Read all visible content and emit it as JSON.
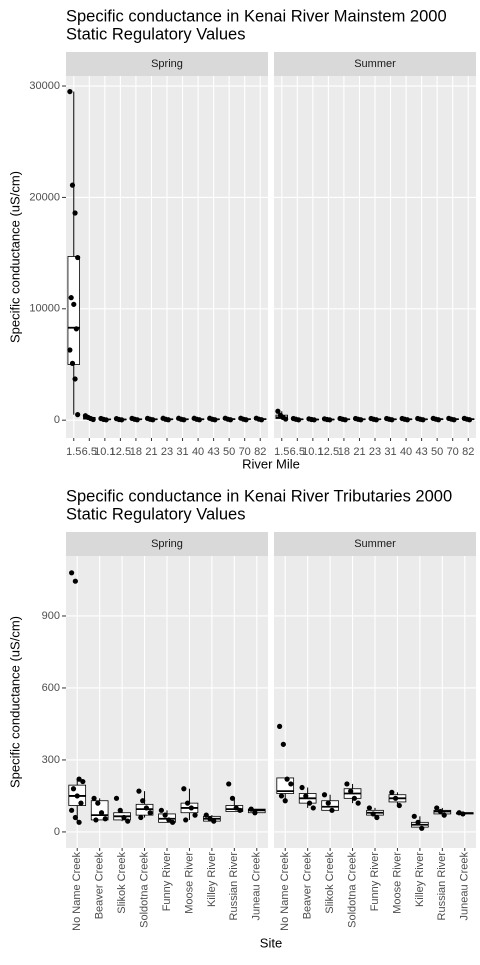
{
  "chart_data": [
    {
      "type": "box",
      "title": "Specific conductance in Kenai River Mainstem  2000",
      "subtitle": "Static Regulatory Values",
      "x_label": "River Mile",
      "y_label": "Specific conductance (uS/cm)",
      "categories": [
        "1.5",
        "6.5",
        "10.1",
        "12.5",
        "18",
        "21",
        "23",
        "31",
        "40",
        "43",
        "50",
        "70",
        "82"
      ],
      "ylim": [
        -1600,
        30900
      ],
      "yticks": [
        0,
        10000,
        20000,
        30000
      ],
      "grid": true,
      "color": "#000000",
      "facets": [
        {
          "name": "Spring",
          "boxes": [
            {
              "lower": 500,
              "q1": 5000,
              "median": 8300,
              "q3": 14700,
              "upper": 29500,
              "points": [
                29500,
                21100,
                18600,
                14600,
                11000,
                10400,
                8200,
                6300,
                5100,
                3700,
                500
              ]
            },
            {
              "lower": 50,
              "q1": 100,
              "median": 150,
              "q3": 250,
              "upper": 400,
              "points": [
                400,
                250,
                150,
                60
              ]
            },
            {
              "lower": 20,
              "q1": 50,
              "median": 70,
              "q3": 100,
              "upper": 150,
              "points": [
                150,
                70,
                30
              ]
            },
            {
              "lower": 20,
              "q1": 40,
              "median": 60,
              "q3": 90,
              "upper": 140,
              "points": [
                140,
                60,
                30
              ]
            },
            {
              "lower": 30,
              "q1": 60,
              "median": 80,
              "q3": 110,
              "upper": 160,
              "points": [
                160,
                80,
                40
              ]
            },
            {
              "lower": 30,
              "q1": 60,
              "median": 80,
              "q3": 110,
              "upper": 160,
              "points": [
                160,
                80,
                40
              ]
            },
            {
              "lower": 30,
              "q1": 60,
              "median": 80,
              "q3": 110,
              "upper": 170,
              "points": [
                170,
                80,
                40
              ]
            },
            {
              "lower": 30,
              "q1": 60,
              "median": 80,
              "q3": 110,
              "upper": 170,
              "points": [
                170,
                80,
                40
              ]
            },
            {
              "lower": 30,
              "q1": 60,
              "median": 80,
              "q3": 110,
              "upper": 170,
              "points": [
                170,
                80,
                40
              ]
            },
            {
              "lower": 30,
              "q1": 60,
              "median": 80,
              "q3": 110,
              "upper": 170,
              "points": [
                170,
                80,
                40
              ]
            },
            {
              "lower": 30,
              "q1": 60,
              "median": 90,
              "q3": 120,
              "upper": 180,
              "points": [
                180,
                90,
                40
              ]
            },
            {
              "lower": 30,
              "q1": 60,
              "median": 90,
              "q3": 120,
              "upper": 180,
              "points": [
                180,
                90,
                40
              ]
            },
            {
              "lower": 30,
              "q1": 60,
              "median": 90,
              "q3": 120,
              "upper": 180,
              "points": [
                180,
                90,
                40
              ]
            }
          ]
        },
        {
          "name": "Summer",
          "boxes": [
            {
              "lower": 50,
              "q1": 150,
              "median": 250,
              "q3": 450,
              "upper": 800,
              "points": [
                800,
                450,
                250,
                100
              ]
            },
            {
              "lower": 20,
              "q1": 60,
              "median": 80,
              "q3": 100,
              "upper": 150,
              "points": [
                150,
                80,
                30
              ]
            },
            {
              "lower": 20,
              "q1": 40,
              "median": 60,
              "q3": 80,
              "upper": 120,
              "points": [
                120,
                60,
                30
              ]
            },
            {
              "lower": 20,
              "q1": 40,
              "median": 60,
              "q3": 80,
              "upper": 120,
              "points": [
                120,
                60,
                30
              ]
            },
            {
              "lower": 30,
              "q1": 60,
              "median": 80,
              "q3": 100,
              "upper": 150,
              "points": [
                150,
                80,
                40
              ]
            },
            {
              "lower": 30,
              "q1": 60,
              "median": 80,
              "q3": 100,
              "upper": 150,
              "points": [
                150,
                80,
                40
              ]
            },
            {
              "lower": 30,
              "q1": 60,
              "median": 80,
              "q3": 100,
              "upper": 150,
              "points": [
                150,
                80,
                40
              ]
            },
            {
              "lower": 30,
              "q1": 60,
              "median": 80,
              "q3": 100,
              "upper": 150,
              "points": [
                150,
                80,
                40
              ]
            },
            {
              "lower": 30,
              "q1": 60,
              "median": 80,
              "q3": 100,
              "upper": 150,
              "points": [
                150,
                80,
                40
              ]
            },
            {
              "lower": 30,
              "q1": 60,
              "median": 80,
              "q3": 100,
              "upper": 150,
              "points": [
                150,
                80,
                40
              ]
            },
            {
              "lower": 30,
              "q1": 60,
              "median": 90,
              "q3": 110,
              "upper": 160,
              "points": [
                160,
                90,
                40
              ]
            },
            {
              "lower": 30,
              "q1": 60,
              "median": 90,
              "q3": 110,
              "upper": 160,
              "points": [
                160,
                90,
                40
              ]
            },
            {
              "lower": 30,
              "q1": 60,
              "median": 90,
              "q3": 110,
              "upper": 160,
              "points": [
                160,
                90,
                40
              ]
            }
          ]
        }
      ]
    },
    {
      "type": "box",
      "title": "Specific conductance in Kenai River Tributaries  2000",
      "subtitle": "Static Regulatory Values",
      "x_label": "Site",
      "y_label": "Specific conductance (uS/cm)",
      "categories": [
        "No Name Creek",
        "Beaver Creek",
        "Slikok Creek",
        "Soldotna Creek",
        "Funny River",
        "Moose River",
        "Killey River",
        "Russian River",
        "Juneau Creek"
      ],
      "ylim": [
        -67,
        1150
      ],
      "yticks": [
        0,
        300,
        600,
        900
      ],
      "grid": true,
      "color": "#000000",
      "facets": [
        {
          "name": "Spring",
          "boxes": [
            {
              "lower": 40,
              "q1": 110,
              "median": 150,
              "q3": 195,
              "upper": 220,
              "points": [
                1080,
                1045,
                220,
                210,
                180,
                150,
                120,
                90,
                60,
                40
              ]
            },
            {
              "lower": 50,
              "q1": 50,
              "median": 70,
              "q3": 130,
              "upper": 140,
              "points": [
                140,
                120,
                80,
                55,
                50
              ]
            },
            {
              "lower": 45,
              "q1": 50,
              "median": 65,
              "q3": 80,
              "upper": 90,
              "points": [
                140,
                90,
                60,
                45
              ]
            },
            {
              "lower": 60,
              "q1": 70,
              "median": 95,
              "q3": 115,
              "upper": 170,
              "points": [
                170,
                130,
                100,
                80,
                60
              ]
            },
            {
              "lower": 40,
              "q1": 40,
              "median": 55,
              "q3": 75,
              "upper": 90,
              "points": [
                90,
                70,
                50,
                40
              ]
            },
            {
              "lower": 50,
              "q1": 80,
              "median": 100,
              "q3": 120,
              "upper": 180,
              "points": [
                180,
                120,
                100,
                70,
                50
              ]
            },
            {
              "lower": 45,
              "q1": 45,
              "median": 55,
              "q3": 65,
              "upper": 70,
              "points": [
                70,
                55,
                45
              ]
            },
            {
              "lower": 85,
              "q1": 85,
              "median": 95,
              "q3": 110,
              "upper": 140,
              "points": [
                200,
                140,
                100,
                90
              ]
            },
            {
              "lower": 80,
              "q1": 80,
              "median": 90,
              "q3": 95,
              "upper": 95,
              "points": [
                95,
                80
              ]
            }
          ]
        },
        {
          "name": "Summer",
          "boxes": [
            {
              "lower": 130,
              "q1": 160,
              "median": 170,
              "q3": 225,
              "upper": 225,
              "points": [
                440,
                365,
                220,
                200,
                150,
                130
              ]
            },
            {
              "lower": 100,
              "q1": 120,
              "median": 140,
              "q3": 160,
              "upper": 185,
              "points": [
                185,
                150,
                120,
                100
              ]
            },
            {
              "lower": 90,
              "q1": 90,
              "median": 105,
              "q3": 130,
              "upper": 155,
              "points": [
                155,
                120,
                90
              ]
            },
            {
              "lower": 120,
              "q1": 140,
              "median": 160,
              "q3": 180,
              "upper": 200,
              "points": [
                200,
                170,
                140,
                120
              ]
            },
            {
              "lower": 60,
              "q1": 70,
              "median": 80,
              "q3": 90,
              "upper": 100,
              "points": [
                100,
                75,
                60
              ]
            },
            {
              "lower": 110,
              "q1": 125,
              "median": 140,
              "q3": 155,
              "upper": 165,
              "points": [
                165,
                140,
                110
              ]
            },
            {
              "lower": 15,
              "q1": 20,
              "median": 30,
              "q3": 40,
              "upper": 65,
              "points": [
                65,
                40,
                15
              ]
            },
            {
              "lower": 70,
              "q1": 75,
              "median": 85,
              "q3": 90,
              "upper": 100,
              "points": [
                100,
                85,
                70
              ]
            },
            {
              "lower": 75,
              "q1": 75,
              "median": 78,
              "q3": 80,
              "upper": 80,
              "points": [
                80,
                75
              ]
            }
          ]
        }
      ]
    }
  ]
}
